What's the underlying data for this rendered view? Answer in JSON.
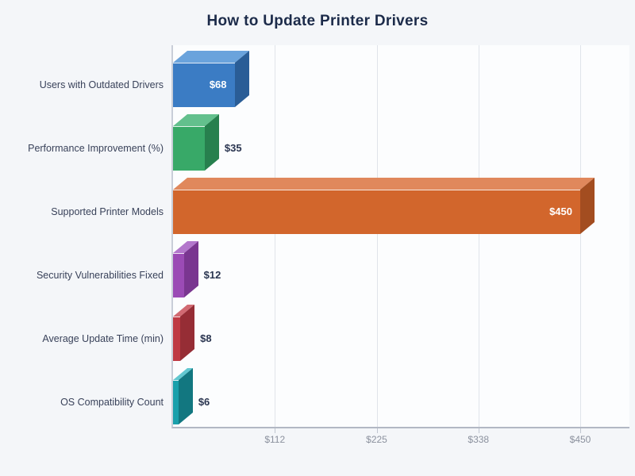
{
  "title": "How to Update Printer Drivers",
  "chart_data": {
    "type": "bar",
    "orientation": "horizontal",
    "title": "How to Update Printer Drivers",
    "categories": [
      "Users with Outdated Drivers",
      "Performance Improvement (%)",
      "Supported Printer Models",
      "Security Vulnerabilities Fixed",
      "Average Update Time (min)",
      "OS Compatibility Count"
    ],
    "values": [
      68,
      35,
      450,
      12,
      8,
      6
    ],
    "value_labels": [
      "$68",
      "$35",
      "$450",
      "$12",
      "$8",
      "$6"
    ],
    "label_inside": [
      true,
      false,
      true,
      false,
      false,
      false
    ],
    "bar_colors": [
      {
        "front": "#3b7cc4",
        "top": "#6aa3dc",
        "side": "#2a5d96"
      },
      {
        "front": "#38a968",
        "top": "#63c08d",
        "side": "#27804e"
      },
      {
        "front": "#d2662c",
        "top": "#e0885c",
        "side": "#a34d20"
      },
      {
        "front": "#9b4bb5",
        "top": "#b377cc",
        "side": "#7a3690"
      },
      {
        "front": "#bf3a44",
        "top": "#d16a72",
        "side": "#962d35"
      },
      {
        "front": "#1aa0ab",
        "top": "#62c8d0",
        "side": "#127780"
      }
    ],
    "xlim": [
      0,
      450
    ],
    "x_ticks": [
      112.5,
      225,
      337.5,
      450
    ],
    "x_tick_labels": [
      "$112",
      "$225",
      "$338",
      "$450"
    ],
    "grid": true,
    "legend": false,
    "value_prefix": "$"
  },
  "colors": {
    "background": "#f4f6f9",
    "plot_background": "#fcfdfe",
    "title": "#1c2b4a",
    "grid": "#e0e4ea",
    "axis": "#b2b8c4",
    "tick_label": "#8b919e",
    "category_label": "#39425a",
    "value_inside": "#ffffff",
    "value_outside": "#2a3550"
  }
}
